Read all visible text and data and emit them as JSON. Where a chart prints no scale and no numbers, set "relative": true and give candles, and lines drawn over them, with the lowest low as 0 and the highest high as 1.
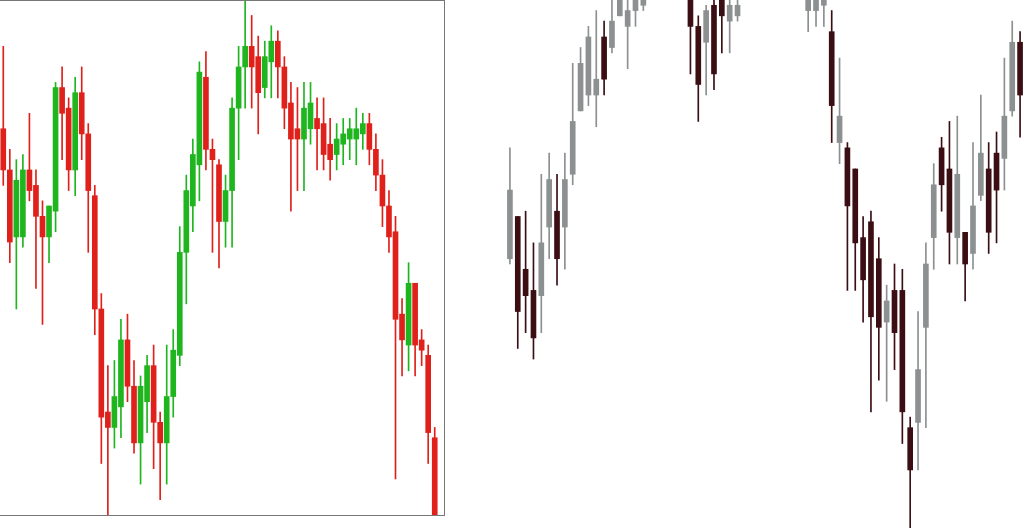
{
  "chart_data": [
    {
      "type": "candlestick",
      "relative": true,
      "categories": [
        null,
        null,
        null,
        null,
        null,
        null,
        null,
        null,
        null,
        null,
        null,
        null,
        null,
        null,
        null,
        null,
        null,
        null,
        null,
        null,
        null,
        null,
        null,
        null,
        null,
        null,
        null,
        null,
        null,
        null,
        null,
        null,
        null,
        null,
        null,
        null,
        null,
        null,
        null,
        null,
        null,
        null,
        null,
        null,
        null,
        null,
        null,
        null,
        null,
        null,
        null,
        null,
        null,
        null,
        null,
        null,
        null,
        null,
        null,
        null,
        null,
        null,
        null,
        null,
        null,
        null,
        null
      ],
      "ohlc": [
        [
          0.75,
          0.91,
          0.64,
          0.67
        ],
        [
          0.67,
          0.71,
          0.49,
          0.53
        ],
        [
          0.54,
          0.69,
          0.4,
          0.65
        ],
        [
          0.54,
          0.7,
          0.52,
          0.67
        ],
        [
          0.67,
          0.78,
          0.61,
          0.63
        ],
        [
          0.64,
          0.67,
          0.44,
          0.58
        ],
        [
          0.58,
          0.61,
          0.37,
          0.54
        ],
        [
          0.54,
          0.6,
          0.49,
          0.6
        ],
        [
          0.59,
          0.84,
          0.55,
          0.83
        ],
        [
          0.83,
          0.87,
          0.69,
          0.78
        ],
        [
          0.79,
          0.81,
          0.63,
          0.67
        ],
        [
          0.67,
          0.85,
          0.62,
          0.82
        ],
        [
          0.82,
          0.87,
          0.69,
          0.74
        ],
        [
          0.74,
          0.76,
          0.51,
          0.63
        ],
        [
          0.62,
          0.64,
          0.35,
          0.4
        ],
        [
          0.4,
          0.43,
          0.1,
          0.19
        ],
        [
          0.2,
          0.29,
          0.0,
          0.17
        ],
        [
          0.17,
          0.3,
          0.13,
          0.23
        ],
        [
          0.21,
          0.38,
          0.15,
          0.34
        ],
        [
          0.34,
          0.39,
          0.22,
          0.25
        ],
        [
          0.25,
          0.3,
          0.12,
          0.14
        ],
        [
          0.14,
          0.27,
          0.06,
          0.25
        ],
        [
          0.22,
          0.31,
          0.16,
          0.29
        ],
        [
          0.29,
          0.33,
          0.09,
          0.18
        ],
        [
          0.18,
          0.2,
          0.03,
          0.14
        ],
        [
          0.14,
          0.33,
          0.06,
          0.23
        ],
        [
          0.23,
          0.36,
          0.19,
          0.32
        ],
        [
          0.31,
          0.56,
          0.29,
          0.51
        ],
        [
          0.51,
          0.66,
          0.41,
          0.63
        ],
        [
          0.6,
          0.73,
          0.55,
          0.7
        ],
        [
          0.68,
          0.88,
          0.61,
          0.86
        ],
        [
          0.85,
          0.9,
          0.67,
          0.71
        ],
        [
          0.71,
          0.73,
          0.51,
          0.69
        ],
        [
          0.68,
          0.69,
          0.48,
          0.57
        ],
        [
          0.57,
          0.66,
          0.52,
          0.63
        ],
        [
          0.63,
          0.81,
          0.52,
          0.79
        ],
        [
          0.79,
          0.91,
          0.69,
          0.87
        ],
        [
          0.87,
          1.0,
          0.79,
          0.91
        ],
        [
          0.91,
          0.97,
          0.79,
          0.87
        ],
        [
          0.89,
          0.93,
          0.74,
          0.82
        ],
        [
          0.83,
          0.92,
          0.81,
          0.89
        ],
        [
          0.88,
          0.95,
          0.81,
          0.92
        ],
        [
          0.92,
          0.94,
          0.81,
          0.87
        ],
        [
          0.87,
          0.89,
          0.75,
          0.79
        ],
        [
          0.8,
          0.84,
          0.59,
          0.73
        ],
        [
          0.75,
          0.83,
          0.63,
          0.73
        ],
        [
          0.73,
          0.84,
          0.63,
          0.79
        ],
        [
          0.75,
          0.84,
          0.72,
          0.8
        ],
        [
          0.77,
          0.81,
          0.67,
          0.75
        ],
        [
          0.76,
          0.81,
          0.67,
          0.7
        ],
        [
          0.72,
          0.77,
          0.65,
          0.69
        ],
        [
          0.7,
          0.76,
          0.67,
          0.73
        ],
        [
          0.72,
          0.77,
          0.68,
          0.74
        ],
        [
          0.73,
          0.77,
          0.69,
          0.75
        ],
        [
          0.73,
          0.79,
          0.68,
          0.75
        ],
        [
          0.74,
          0.78,
          0.71,
          0.76
        ],
        [
          0.76,
          0.78,
          0.68,
          0.71
        ],
        [
          0.71,
          0.74,
          0.63,
          0.66
        ],
        [
          0.66,
          0.69,
          0.56,
          0.6
        ],
        [
          0.6,
          0.63,
          0.51,
          0.54
        ],
        [
          0.55,
          0.58,
          0.07,
          0.38
        ],
        [
          0.39,
          0.42,
          0.27,
          0.34
        ],
        [
          0.33,
          0.49,
          0.28,
          0.45
        ],
        [
          0.45,
          0.45,
          0.27,
          0.33
        ],
        [
          0.34,
          0.36,
          0.29,
          0.32
        ],
        [
          0.31,
          0.33,
          0.1,
          0.16
        ],
        [
          0.15,
          0.17,
          0.0,
          0.0
        ]
      ],
      "colors": [
        "#e0201b",
        "#e0201b",
        "#1fb51f",
        "#1fb51f",
        "#e0201b",
        "#e0201b",
        "#e0201b",
        "#1fb51f",
        "#1fb51f",
        "#e0201b",
        "#e0201b",
        "#1fb51f",
        "#e0201b",
        "#e0201b",
        "#e0201b",
        "#e0201b",
        "#e0201b",
        "#1fb51f",
        "#1fb51f",
        "#e0201b",
        "#e0201b",
        "#1fb51f",
        "#1fb51f",
        "#e0201b",
        "#e0201b",
        "#1fb51f",
        "#1fb51f",
        "#1fb51f",
        "#1fb51f",
        "#1fb51f",
        "#1fb51f",
        "#e0201b",
        "#e0201b",
        "#e0201b",
        "#1fb51f",
        "#1fb51f",
        "#1fb51f",
        "#1fb51f",
        "#e0201b",
        "#e0201b",
        "#1fb51f",
        "#1fb51f",
        "#e0201b",
        "#e0201b",
        "#e0201b",
        "#e0201b",
        "#1fb51f",
        "#1fb51f",
        "#e0201b",
        "#e0201b",
        "#e0201b",
        "#1fb51f",
        "#1fb51f",
        "#1fb51f",
        "#1fb51f",
        "#1fb51f",
        "#e0201b",
        "#e0201b",
        "#e0201b",
        "#e0201b",
        "#e0201b",
        "#e0201b",
        "#1fb51f",
        "#e0201b",
        "#e0201b",
        "#e0201b",
        "#e0201b"
      ]
    },
    {
      "type": "candlestick",
      "relative": true,
      "categories": [
        null,
        null,
        null,
        null,
        null,
        null,
        null,
        null,
        null,
        null,
        null,
        null,
        null,
        null,
        null,
        null,
        null,
        null,
        null,
        null,
        null,
        null,
        null,
        null,
        null,
        null,
        null,
        null,
        null,
        null,
        null,
        null,
        null,
        null,
        null,
        null,
        null,
        null,
        null,
        null,
        null,
        null,
        null,
        null,
        null,
        null,
        null,
        null,
        null,
        null,
        null,
        null,
        null,
        null,
        null,
        null,
        null,
        null,
        null,
        null,
        null,
        null,
        null,
        null,
        null,
        null
      ],
      "ohlc": [
        [
          0.51,
          0.72,
          0.5,
          0.64
        ],
        [
          0.59,
          0.59,
          0.34,
          0.41
        ],
        [
          0.49,
          0.6,
          0.37,
          0.44
        ],
        [
          0.45,
          0.54,
          0.32,
          0.36
        ],
        [
          0.44,
          0.67,
          0.37,
          0.54
        ],
        [
          0.57,
          0.71,
          0.51,
          0.66
        ],
        [
          0.6,
          0.67,
          0.46,
          0.51
        ],
        [
          0.57,
          0.71,
          0.49,
          0.66
        ],
        [
          0.67,
          0.88,
          0.65,
          0.77
        ],
        [
          0.79,
          0.91,
          0.79,
          0.88
        ],
        [
          0.82,
          0.95,
          0.8,
          0.93
        ],
        [
          0.82,
          0.98,
          0.76,
          0.85
        ],
        [
          0.93,
          0.96,
          0.82,
          0.85
        ],
        [
          0.91,
          1,
          0.9,
          0.96
        ],
        [
          0.97,
          1,
          0.97,
          1
        ],
        [
          0.95,
          1,
          0.87,
          0.98
        ],
        [
          0.98,
          1,
          0.95,
          1
        ],
        [
          0.99,
          1,
          0.98,
          1
        ],
        null,
        null,
        null,
        null,
        null,
        [
          1,
          1,
          0.86,
          0.95
        ],
        [
          0.95,
          0.97,
          0.77,
          0.84
        ],
        [
          0.92,
          0.99,
          0.82,
          0.98
        ],
        [
          0.99,
          1,
          0.83,
          0.86
        ],
        [
          1,
          1,
          0.9,
          0.97
        ],
        [
          0.96,
          1,
          0.9,
          0.99
        ],
        [
          0.97,
          1,
          0.96,
          0.99
        ],
        null,
        null,
        null,
        null,
        null,
        null,
        null,
        null,
        [
          0.98,
          1,
          0.94,
          1
        ],
        [
          0.98,
          1,
          0.95,
          1
        ],
        [
          0.99,
          1,
          0.95,
          1
        ],
        [
          0.94,
          0.98,
          0.73,
          0.8
        ],
        [
          0.73,
          0.89,
          0.69,
          0.78
        ],
        [
          0.72,
          0.73,
          0.45,
          0.61
        ],
        [
          0.68,
          0.68,
          0.45,
          0.54
        ],
        [
          0.55,
          0.59,
          0.39,
          0.47
        ],
        [
          0.58,
          0.6,
          0.22,
          0.4
        ],
        [
          0.51,
          0.55,
          0.28,
          0.38
        ],
        [
          0.39,
          0.46,
          0.24,
          0.43
        ],
        [
          0.45,
          0.5,
          0.3,
          0.37
        ],
        [
          0.45,
          0.49,
          0.16,
          0.22
        ],
        [
          0.19,
          0.21,
          0,
          0.11
        ],
        [
          0.2,
          0.41,
          0.11,
          0.3
        ],
        [
          0.38,
          0.54,
          0.19,
          0.5
        ],
        [
          0.55,
          0.69,
          0.49,
          0.65
        ],
        [
          0.72,
          0.74,
          0.6,
          0.65
        ],
        [
          0.68,
          0.77,
          0.5,
          0.56
        ],
        [
          0.55,
          0.78,
          0.5,
          0.67
        ],
        [
          0.56,
          0.56,
          0.43,
          0.5
        ],
        [
          0.52,
          0.73,
          0.49,
          0.61
        ],
        [
          0.63,
          0.82,
          0.62,
          0.71
        ],
        [
          0.68,
          0.73,
          0.52,
          0.56
        ],
        [
          0.71,
          0.75,
          0.54,
          0.64
        ],
        [
          0.7,
          0.89,
          0.64,
          0.78
        ],
        [
          0.79,
          0.96,
          0.78,
          0.92
        ],
        [
          0.92,
          0.94,
          0.74,
          0.82
        ]
      ],
      "colors": [
        "#8c9090",
        "#3b0e14",
        "#3b0e14",
        "#3b0e14",
        "#8c9090",
        "#8c9090",
        "#3b0e14",
        "#8c9090",
        "#8c9090",
        "#8c9090",
        "#8c9090",
        "#8c9090",
        "#3b0e14",
        "#8c9090",
        "#8c9090",
        "#8c9090",
        "#8c9090",
        "#8c9090",
        null,
        null,
        null,
        null,
        null,
        "#3b0e14",
        "#3b0e14",
        "#8c9090",
        "#3b0e14",
        "#3b0e14",
        "#8c9090",
        "#8c9090",
        null,
        null,
        null,
        null,
        null,
        null,
        null,
        null,
        "#8c9090",
        "#8c9090",
        "#8c9090",
        "#3b0e14",
        "#8c9090",
        "#3b0e14",
        "#3b0e14",
        "#3b0e14",
        "#3b0e14",
        "#3b0e14",
        "#8c9090",
        "#3b0e14",
        "#3b0e14",
        "#3b0e14",
        "#8c9090",
        "#8c9090",
        "#8c9090",
        "#3b0e14",
        "#3b0e14",
        "#8c9090",
        "#3b0e14",
        "#8c9090",
        "#8c9090",
        "#3b0e14",
        "#3b0e14",
        "#8c9090",
        "#8c9090",
        "#3b0e14"
      ]
    }
  ]
}
